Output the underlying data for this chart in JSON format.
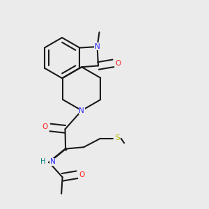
{
  "bg_color": "#ebebeb",
  "bond_color": "#1a1a1a",
  "N_color": "#2020ff",
  "O_color": "#ff2020",
  "S_color": "#b8b800",
  "H_color": "#008080",
  "lw": 1.5,
  "dbs": 0.018,
  "fs": 7.5,
  "xlim": [
    0,
    1
  ],
  "ylim": [
    0,
    1
  ]
}
